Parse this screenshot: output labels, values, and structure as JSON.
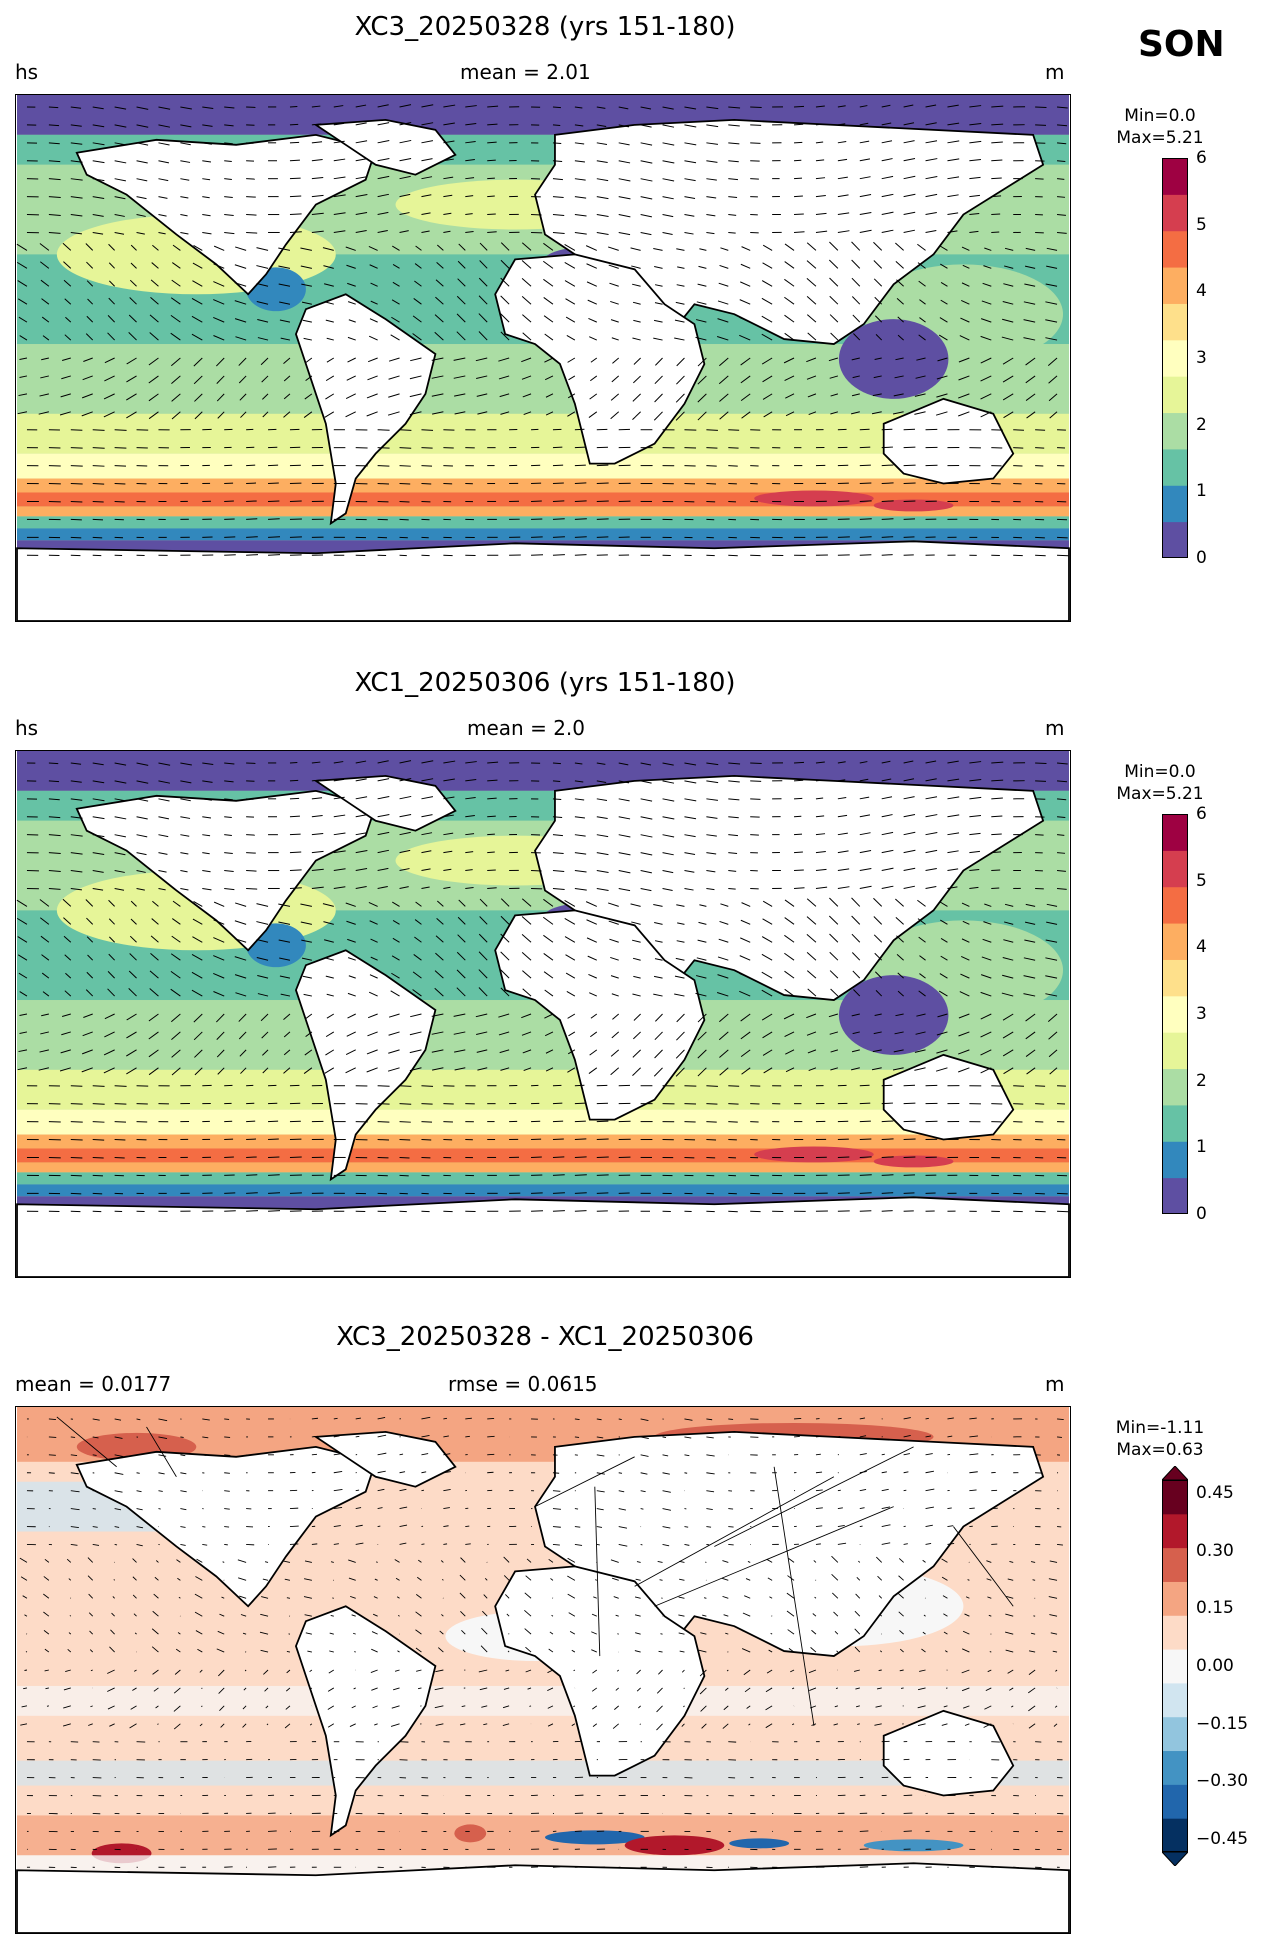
{
  "season": "SON",
  "panels": [
    {
      "title": "XC3_20250328 (yrs 151-180)",
      "left_label": "hs",
      "center_label": "mean = 2.01",
      "right_label": "m",
      "min_label": "Min=0.0",
      "max_label": "Max=5.21",
      "colorbar_ticks": [
        "6",
        "5",
        "4",
        "3",
        "2",
        "1",
        "0"
      ]
    },
    {
      "title": "XC1_20250306 (yrs 151-180)",
      "left_label": "hs",
      "center_label": "mean = 2.0",
      "right_label": "m",
      "min_label": "Min=0.0",
      "max_label": "Max=5.21",
      "colorbar_ticks": [
        "6",
        "5",
        "4",
        "3",
        "2",
        "1",
        "0"
      ]
    },
    {
      "title": "XC3_20250328 - XC1_20250306",
      "left_label": "mean = 0.0177",
      "center_label": "rmse = 0.0615",
      "right_label": "m",
      "min_label": "Min=-1.11",
      "max_label": "Max=0.63",
      "colorbar_ticks": [
        "0.45",
        "0.30",
        "0.15",
        "0.00",
        "−0.15",
        "−0.30",
        "−0.45"
      ]
    }
  ],
  "colors": {
    "spectral": [
      "#5e4fa2",
      "#3288bd",
      "#66c2a5",
      "#abdda4",
      "#e6f598",
      "#ffffbf",
      "#fee08b",
      "#fdae61",
      "#f46d43",
      "#d53e4f",
      "#9e0142"
    ],
    "diverging": [
      "#053061",
      "#2166ac",
      "#4393c3",
      "#92c5de",
      "#d1e5f0",
      "#f7f7f7",
      "#fddbc7",
      "#f4a582",
      "#d6604d",
      "#b2182b",
      "#67001f"
    ],
    "land": "#ffffff",
    "coast": "#000000"
  }
}
